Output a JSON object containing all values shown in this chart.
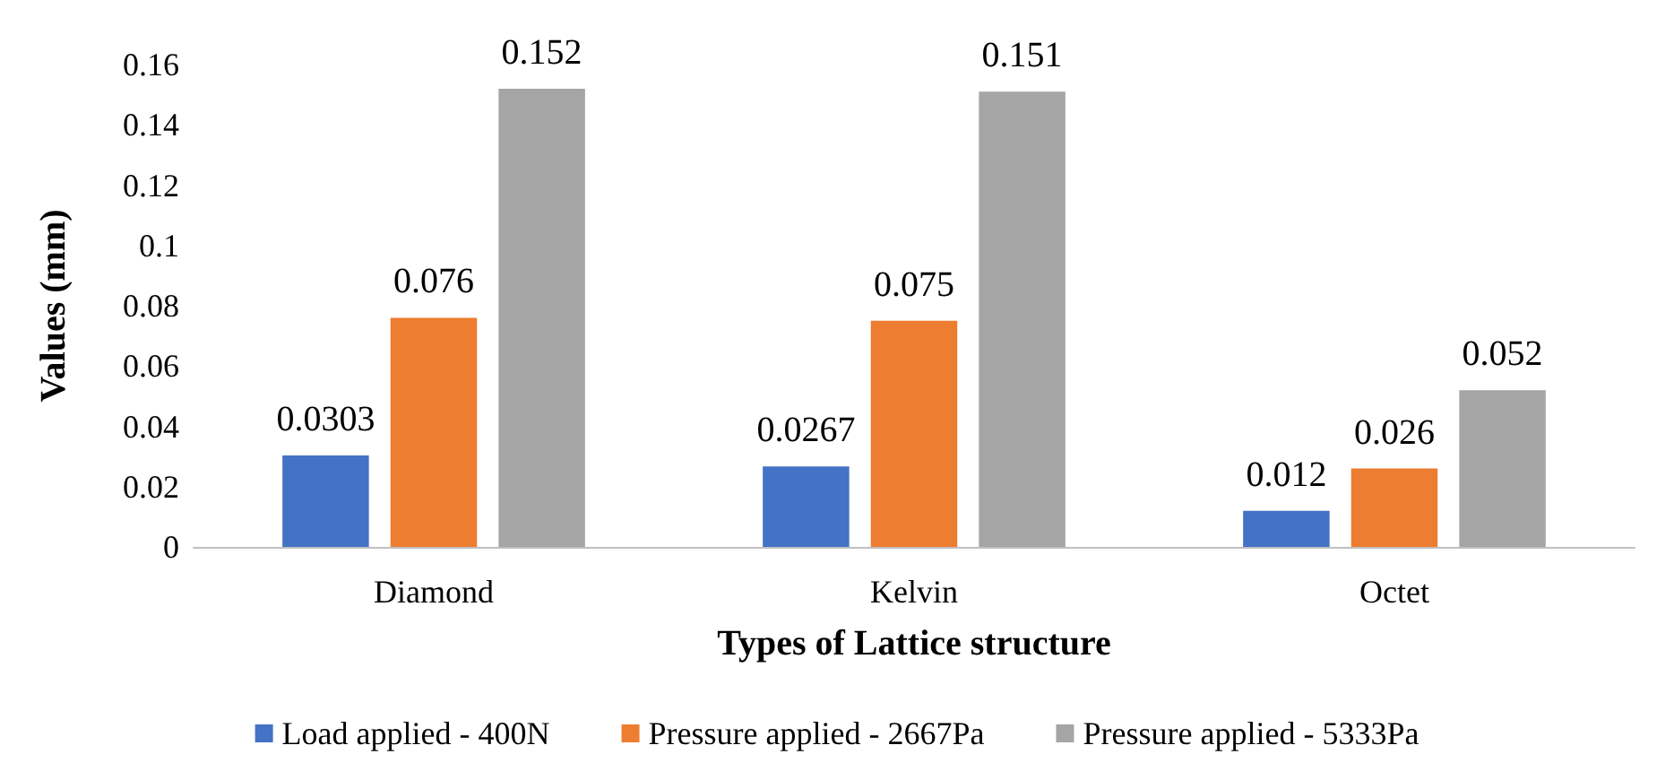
{
  "chart_data": {
    "type": "bar",
    "xlabel": "Types of Lattice structure",
    "ylabel": "Values (mm)",
    "categories": [
      "Diamond",
      "Kelvin",
      "Octet"
    ],
    "series": [
      {
        "name": "Load applied - 400N",
        "color": "#4472c4",
        "values": [
          0.0303,
          0.0267,
          0.012
        ]
      },
      {
        "name": "Pressure applied - 2667Pa",
        "color": "#ed7d31",
        "values": [
          0.076,
          0.075,
          0.026
        ]
      },
      {
        "name": "Pressure applied - 5333Pa",
        "color": "#a5a5a5",
        "values": [
          0.152,
          0.151,
          0.052
        ]
      }
    ],
    "ylim": [
      0,
      0.16
    ],
    "yticks": [
      0,
      0.02,
      0.04,
      0.06,
      0.08,
      0.1,
      0.12,
      0.14,
      0.16
    ],
    "data_labels": true,
    "grid": false,
    "legend": "bottom"
  }
}
